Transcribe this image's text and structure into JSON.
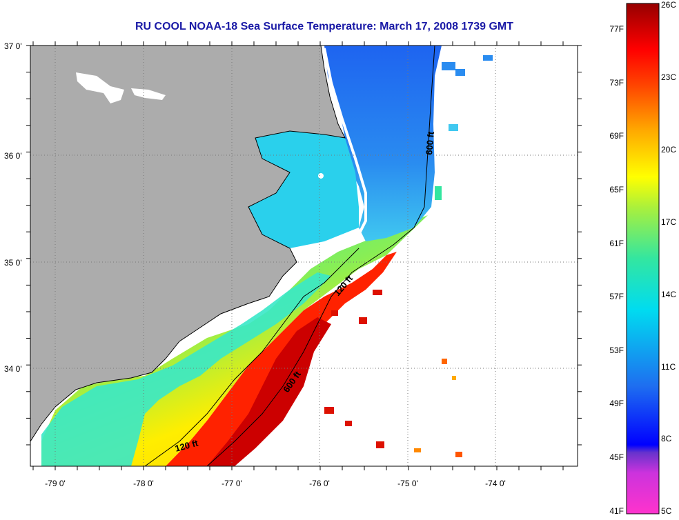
{
  "title": "RU COOL  NOAA-18  Sea Surface Temperature:  March 17, 2008 1739 GMT",
  "latitude_labels": [
    "37 0'",
    "36 0'",
    "35 0'",
    "34 0'"
  ],
  "longitude_labels": [
    "-79 0'",
    "-78 0'",
    "-77 0'",
    "-76 0'",
    "-75 0'",
    "-74 0'"
  ],
  "isobath_labels": {
    "shelf_break_north": "600 ft",
    "shelf_break_south": "600 ft",
    "mid_shelf_north": "120 ft",
    "mid_shelf_south": "120 ft"
  },
  "colorbar": {
    "fahrenheit_labels": [
      "77F",
      "73F",
      "69F",
      "65F",
      "61F",
      "57F",
      "53F",
      "49F",
      "45F",
      "41F"
    ],
    "celsius_labels": [
      "26C",
      "23C",
      "20C",
      "17C",
      "14C",
      "11C",
      "8C",
      "5C"
    ],
    "colors": [
      "#ff33cc",
      "#8833cc",
      "#0000ff",
      "#1e6ef0",
      "#00c8f0",
      "#33e6a0",
      "#aaf03c",
      "#ffff00",
      "#ffaa00",
      "#ff5500",
      "#ff0000",
      "#c80000",
      "#960000"
    ]
  },
  "colors": {
    "land": "#acacac",
    "no_data": "#ffffff",
    "title": "#1a1aa6",
    "grid": "#777777"
  }
}
